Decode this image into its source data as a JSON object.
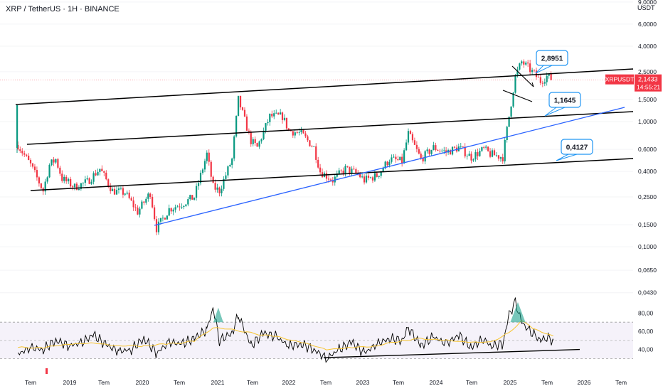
{
  "header": {
    "symbol_title": "XRP / TetherUS · 1H · BINANCE",
    "currency": "USDT"
  },
  "colors": {
    "up": "#089981",
    "down": "#f23645",
    "channel": "#000000",
    "trend": "#2962ff",
    "rsi_line": "#000000",
    "rsi_ma": "#f7c531",
    "rsi_band": "#ede7f6",
    "callout_border": "#2196f3",
    "price_tag": "#f23645"
  },
  "chart_data": [
    {
      "type": "candlestick",
      "title": "XRP / TetherUS · 1H · BINANCE",
      "y_scale": "log",
      "y_ticks": [
        "9,0000",
        "6,0000",
        "4,0000",
        "2,5000",
        "1,5000",
        "1,0000",
        "0,6000",
        "0,4000",
        "0,2500",
        "0,1500",
        "0,1000",
        "0,0650",
        "0,0430"
      ],
      "x_ticks": [
        "Tem",
        "2019",
        "Tem",
        "2020",
        "Tem",
        "2021",
        "Tem",
        "2022",
        "Tem",
        "2023",
        "Tem",
        "2024",
        "Tem",
        "2025",
        "Tem",
        "2026",
        "Tem"
      ],
      "series": [
        {
          "name": "XRPUSDT",
          "last_value": "2,1433",
          "countdown": "14:55:21"
        }
      ],
      "annotations": [
        "2,8951",
        "1,1645",
        "0,4127"
      ],
      "lines": [
        "ascending channel upper",
        "ascending channel middle",
        "ascending channel lower",
        "rising support trendline",
        "symmetrical triangle"
      ],
      "price_series": [
        [
          "2018-05",
          0.65
        ],
        [
          "2018-07",
          0.45
        ],
        [
          "2018-09",
          0.28
        ],
        [
          "2018-10",
          0.45
        ],
        [
          "2018-11",
          0.5
        ],
        [
          "2018-12",
          0.35
        ],
        [
          "2019-02",
          0.3
        ],
        [
          "2019-04",
          0.33
        ],
        [
          "2019-06",
          0.42
        ],
        [
          "2019-08",
          0.28
        ],
        [
          "2019-10",
          0.27
        ],
        [
          "2019-12",
          0.19
        ],
        [
          "2020-02",
          0.27
        ],
        [
          "2020-03",
          0.14
        ],
        [
          "2020-05",
          0.2
        ],
        [
          "2020-07",
          0.22
        ],
        [
          "2020-09",
          0.25
        ],
        [
          "2020-11",
          0.55
        ],
        [
          "2020-12",
          0.3
        ],
        [
          "2021-01",
          0.28
        ],
        [
          "2021-03",
          0.5
        ],
        [
          "2021-04",
          1.5
        ],
        [
          "2021-06",
          0.7
        ],
        [
          "2021-07",
          0.62
        ],
        [
          "2021-09",
          1.1
        ],
        [
          "2021-11",
          1.1
        ],
        [
          "2021-12",
          0.85
        ],
        [
          "2022-02",
          0.8
        ],
        [
          "2022-04",
          0.62
        ],
        [
          "2022-05",
          0.4
        ],
        [
          "2022-07",
          0.34
        ],
        [
          "2022-09",
          0.42
        ],
        [
          "2022-11",
          0.38
        ],
        [
          "2022-12",
          0.34
        ],
        [
          "2023-02",
          0.37
        ],
        [
          "2023-04",
          0.5
        ],
        [
          "2023-06",
          0.48
        ],
        [
          "2023-07",
          0.8
        ],
        [
          "2023-09",
          0.5
        ],
        [
          "2023-11",
          0.62
        ],
        [
          "2024-01",
          0.57
        ],
        [
          "2024-03",
          0.62
        ],
        [
          "2024-05",
          0.52
        ],
        [
          "2024-07",
          0.6
        ],
        [
          "2024-08",
          0.55
        ],
        [
          "2024-10",
          0.52
        ],
        [
          "2024-11",
          1.1
        ],
        [
          "2024-12",
          2.3
        ],
        [
          "2025-01",
          3.0
        ],
        [
          "2025-02",
          2.7
        ],
        [
          "2025-03",
          2.4
        ],
        [
          "2025-04",
          2.1
        ],
        [
          "2025-05",
          2.3
        ],
        [
          "2025-06",
          2.14
        ]
      ]
    },
    {
      "type": "line",
      "title": "RSI",
      "y_ticks": [
        "80,00",
        "60,00",
        "40,00"
      ],
      "rsi_band": [
        30,
        70
      ],
      "series": [
        {
          "values": [
            [
              "2018-05",
              35
            ],
            [
              "2018-07",
              42
            ],
            [
              "2018-09",
              40
            ],
            [
              "2018-11",
              50
            ],
            [
              "2019-01",
              44
            ],
            [
              "2019-03",
              47
            ],
            [
              "2019-05",
              56
            ],
            [
              "2019-07",
              45
            ],
            [
              "2019-09",
              38
            ],
            [
              "2019-11",
              40
            ],
            [
              "2020-01",
              52
            ],
            [
              "2020-03",
              36
            ],
            [
              "2020-05",
              48
            ],
            [
              "2020-07",
              46
            ],
            [
              "2020-09",
              52
            ],
            [
              "2020-11",
              62
            ],
            [
              "2020-12",
              86
            ],
            [
              "2021-01",
              50
            ],
            [
              "2021-03",
              58
            ],
            [
              "2021-04",
              78
            ],
            [
              "2021-06",
              44
            ],
            [
              "2021-08",
              58
            ],
            [
              "2021-10",
              54
            ],
            [
              "2021-12",
              44
            ],
            [
              "2022-02",
              46
            ],
            [
              "2022-04",
              40
            ],
            [
              "2022-06",
              30
            ],
            [
              "2022-08",
              40
            ],
            [
              "2022-10",
              48
            ],
            [
              "2022-12",
              36
            ],
            [
              "2023-02",
              46
            ],
            [
              "2023-04",
              52
            ],
            [
              "2023-06",
              50
            ],
            [
              "2023-07",
              64
            ],
            [
              "2023-09",
              44
            ],
            [
              "2023-11",
              54
            ],
            [
              "2024-01",
              46
            ],
            [
              "2024-03",
              56
            ],
            [
              "2024-05",
              42
            ],
            [
              "2024-07",
              52
            ],
            [
              "2024-08",
              44
            ],
            [
              "2024-10",
              46
            ],
            [
              "2024-11",
              78
            ],
            [
              "2024-12",
              92
            ],
            [
              "2025-01",
              70
            ],
            [
              "2025-02",
              62
            ],
            [
              "2025-03",
              56
            ],
            [
              "2025-04",
              50
            ],
            [
              "2025-05",
              53
            ],
            [
              "2025-06",
              50
            ]
          ]
        },
        {
          "values": [
            [
              "2018-05",
              42
            ],
            [
              "2018-09",
              42
            ],
            [
              "2019-01",
              46
            ],
            [
              "2019-05",
              47
            ],
            [
              "2019-09",
              44
            ],
            [
              "2020-01",
              44
            ],
            [
              "2020-05",
              46
            ],
            [
              "2020-09",
              49
            ],
            [
              "2020-12",
              64
            ],
            [
              "2021-03",
              62
            ],
            [
              "2021-06",
              58
            ],
            [
              "2021-10",
              54
            ],
            [
              "2022-02",
              48
            ],
            [
              "2022-06",
              40
            ],
            [
              "2022-10",
              42
            ],
            [
              "2023-02",
              44
            ],
            [
              "2023-06",
              50
            ],
            [
              "2023-09",
              52
            ],
            [
              "2024-01",
              50
            ],
            [
              "2024-05",
              48
            ],
            [
              "2024-08",
              48
            ],
            [
              "2024-11",
              58
            ],
            [
              "2025-01",
              72
            ],
            [
              "2025-03",
              62
            ],
            [
              "2025-06",
              55
            ]
          ]
        }
      ]
    }
  ]
}
